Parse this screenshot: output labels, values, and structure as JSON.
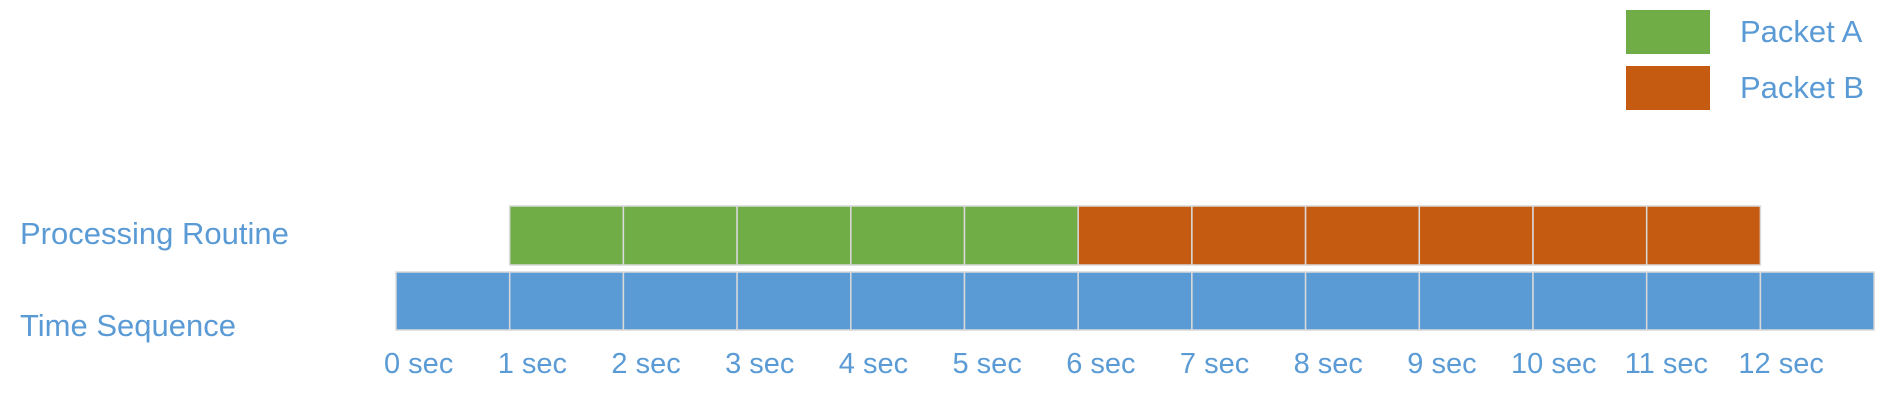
{
  "rows": {
    "processing_label": "Processing Routine",
    "time_label": "Time Sequence"
  },
  "legend": [
    {
      "label": "Packet A",
      "color": "#70AD47"
    },
    {
      "label": "Packet B",
      "color": "#C55A11"
    }
  ],
  "colors": {
    "time_segment": "#5B9BD5",
    "label_text": "#5B9BD5",
    "segment_divider": "#D9D9D9"
  },
  "time_ticks": [
    "0 sec",
    "1 sec",
    "2 sec",
    "3 sec",
    "4 sec",
    "5 sec",
    "6 sec",
    "7 sec",
    "8 sec",
    "9 sec",
    "10 sec",
    "11 sec",
    "12 sec"
  ],
  "time_segment_count": 13,
  "processing": [
    {
      "packet": "Packet A",
      "start": 1,
      "end": 6
    },
    {
      "packet": "Packet B",
      "start": 6,
      "end": 12
    }
  ]
}
